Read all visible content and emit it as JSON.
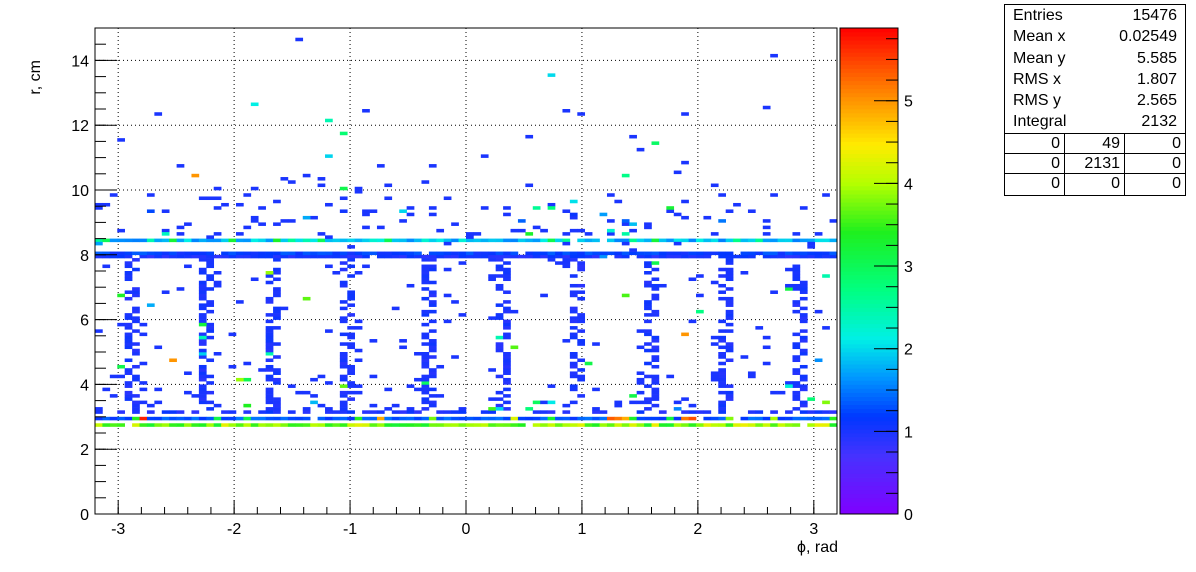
{
  "chart_data": {
    "type": "heatmap",
    "xlabel": "ϕ, rad",
    "ylabel": "r, cm",
    "xlim": [
      -3.2,
      3.2
    ],
    "ylim": [
      0,
      15
    ],
    "x_ticks": [
      "-3",
      "-2",
      "-1",
      "0",
      "1",
      "2",
      "3"
    ],
    "y_ticks": [
      "0",
      "2",
      "4",
      "6",
      "8",
      "10",
      "12",
      "14"
    ],
    "z_ticks": [
      "0",
      "1",
      "2",
      "3",
      "4",
      "5"
    ],
    "zlim": [
      0,
      5.88
    ],
    "grid": true,
    "bins": {
      "x": 100,
      "y": 150
    },
    "bands": [
      {
        "r": 2.75,
        "value": 3.8,
        "note": "dense row of entries"
      },
      {
        "r": 2.95,
        "value": 1.3,
        "note": "dense row of entries, up to ~5.8"
      },
      {
        "r": 3.15,
        "value": 1.0,
        "note": "sparse"
      },
      {
        "r": 7.9,
        "value": 1.0,
        "note": "dense row"
      },
      {
        "r": 8.1,
        "value": 1.2,
        "note": "dense row"
      },
      {
        "r": 8.4,
        "value": 1.8,
        "note": "dense row"
      }
    ],
    "ladders": {
      "phi_centers": [
        -2.86,
        -2.22,
        -1.67,
        -1.01,
        -0.34,
        0.3,
        0.93,
        1.58,
        2.23,
        2.86
      ],
      "r_range": [
        3.2,
        7.9
      ],
      "value": 1.0
    },
    "notable_bins": [
      {
        "phi": -2.35,
        "r": 10.4,
        "value": 5.0
      },
      {
        "phi": -2.56,
        "r": 4.8,
        "value": 5.0
      },
      {
        "phi": 1.9,
        "r": 5.5,
        "value": 5.0
      },
      {
        "phi": 0.72,
        "r": 13.5,
        "value": 2.0
      },
      {
        "phi": -1.45,
        "r": 14.7,
        "value": 1.0
      },
      {
        "phi": 2.65,
        "r": 14.1,
        "value": 1.0
      }
    ]
  },
  "stats": {
    "rows": [
      {
        "label": "Entries",
        "value": "15476"
      },
      {
        "label": "Mean x",
        "value": "0.02549"
      },
      {
        "label": "Mean y",
        "value": "5.585"
      },
      {
        "label": "RMS x",
        "value": "1.807"
      },
      {
        "label": "RMS y",
        "value": "2.565"
      },
      {
        "label": "Integral",
        "value": "2132"
      }
    ],
    "grid": [
      [
        "0",
        "49",
        "0"
      ],
      [
        "0",
        "2131",
        "0"
      ],
      [
        "0",
        "0",
        "0"
      ]
    ]
  }
}
